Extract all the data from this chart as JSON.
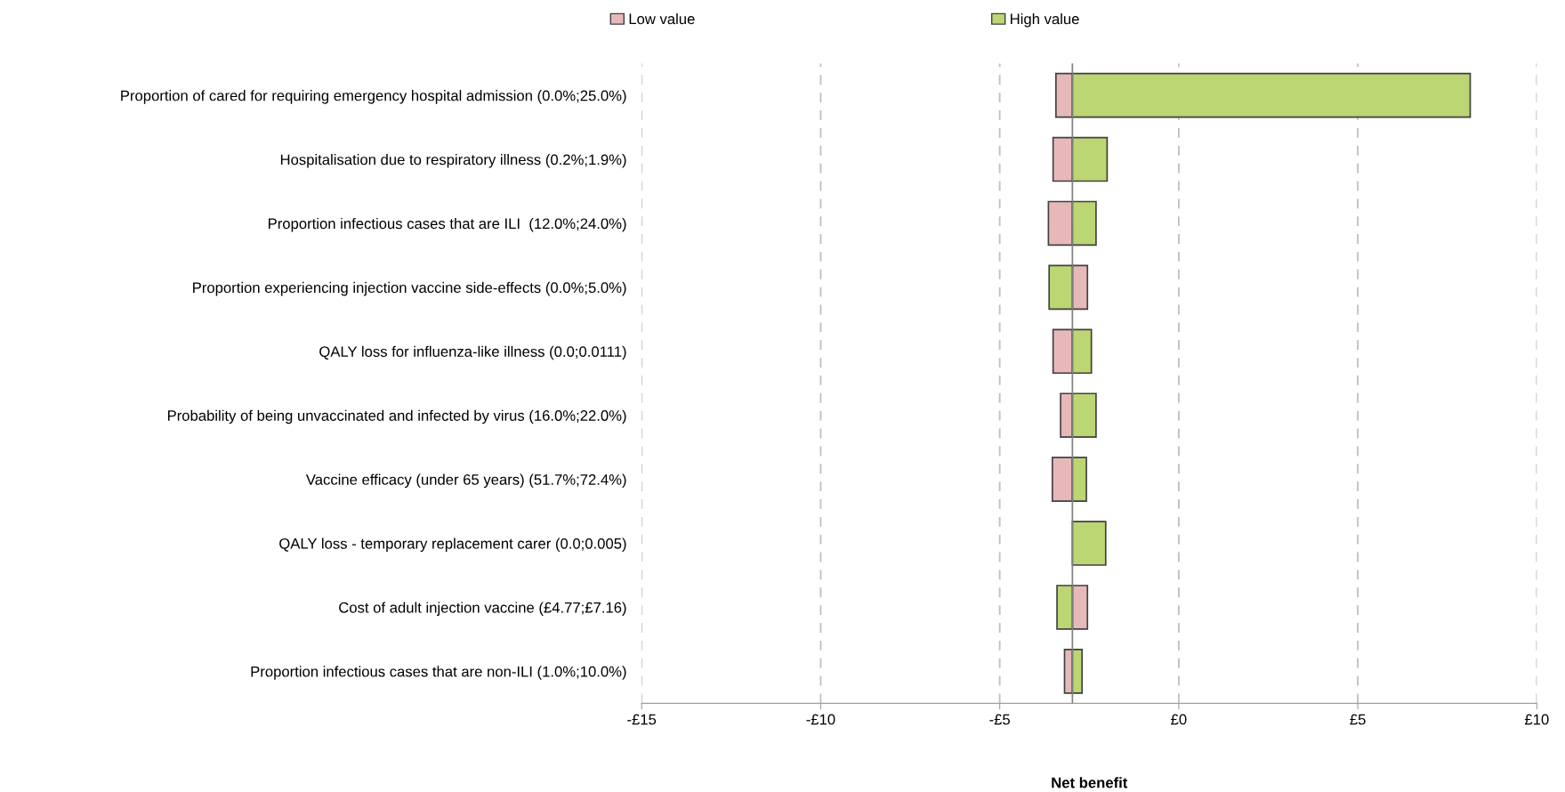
{
  "chart_data": {
    "type": "bar",
    "orientation": "horizontal",
    "xlabel": "Net benefit",
    "categories": [
      "Proportion of cared for requiring emergency hospital admission (0.0%;25.0%)",
      "Hospitalisation due to respiratory illness (0.2%;1.9%)",
      "Proportion infectious cases that are ILI  (12.0%;24.0%)",
      "Proportion experiencing injection vaccine side-effects (0.0%;5.0%)",
      "QALY loss for influenza-like illness (0.0;0.0111)",
      "Probability of being unvaccinated and infected by virus (16.0%;22.0%)",
      "Vaccine efficacy (under 65 years) (51.7%;72.4%)",
      "QALY loss - temporary replacement carer (0.0;0.005)",
      "Cost of adult injection vaccine (£4.77;£7.16)",
      "Proportion infectious cases that are non-ILI (1.0%;10.0%)"
    ],
    "series": [
      {
        "name": "Low value",
        "color": "#e6b9b8",
        "base": [
          -2.97,
          -2.97,
          -2.97,
          -2.97,
          -2.97,
          -2.97,
          -2.97,
          null,
          -2.97,
          -2.97
        ],
        "values": [
          -0.46,
          -0.54,
          -0.67,
          0.42,
          -0.54,
          -0.33,
          -0.56,
          null,
          0.42,
          -0.22
        ]
      },
      {
        "name": "High value",
        "color": "#bbd672",
        "base": [
          -2.97,
          -2.97,
          -2.97,
          -2.97,
          -2.97,
          -2.97,
          -2.97,
          -2.97,
          -2.97,
          -2.97
        ],
        "values": [
          11.11,
          0.97,
          0.66,
          -0.65,
          0.53,
          0.66,
          0.39,
          0.93,
          -0.43,
          0.27
        ]
      }
    ],
    "xlim": [
      -15,
      10
    ],
    "xticks": [
      {
        "value": -15,
        "label": "-£15"
      },
      {
        "value": -10,
        "label": "-£10"
      },
      {
        "value": -5,
        "label": "-£5"
      },
      {
        "value": 0,
        "label": "£0"
      },
      {
        "value": 5,
        "label": "£5"
      },
      {
        "value": 10,
        "label": "£10"
      }
    ],
    "ref_lines": [
      {
        "axis": "x",
        "value": -2.97,
        "color": "#808080",
        "line_style": "solid"
      }
    ],
    "grid": "x",
    "legend": "top"
  }
}
